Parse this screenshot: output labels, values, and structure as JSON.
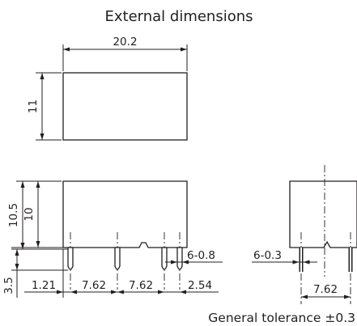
{
  "title": "External dimensions",
  "dimensions": {
    "top_width": "20.2",
    "top_height": "11",
    "side_total_height": "10.5",
    "side_body_height": "10",
    "pin_length": "3.5",
    "first_pin_offset": "1.21",
    "pin_pitch_1": "7.62",
    "pin_pitch_2": "7.62",
    "pin_pitch_3": "2.54",
    "pin_thickness": "6-0.8",
    "end_pin_width": "6-0.3",
    "end_pin_pitch": "7.62"
  },
  "tolerance_note": "General tolerance ±0.3"
}
